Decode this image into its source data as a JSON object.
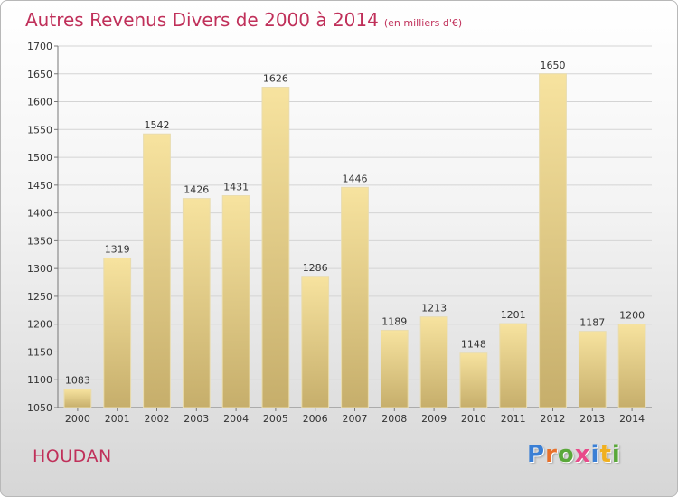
{
  "title": "Autres Revenus Divers de 2000 à 2014",
  "subtitle": "(en milliers d'€)",
  "city": "HOUDAN",
  "brand": {
    "text": "Proxiti",
    "letter_colors": [
      "#3a7fd5",
      "#e8702a",
      "#5aa83a",
      "#e84a8a",
      "#3a7fd5",
      "#f0b020",
      "#5aa83a"
    ]
  },
  "colors": {
    "accent": "#c0305a",
    "bar_light": "#f7e39f",
    "bar_dark": "#c6ae6b"
  },
  "chart_data": {
    "type": "bar",
    "categories": [
      "2000",
      "2001",
      "2002",
      "2003",
      "2004",
      "2005",
      "2006",
      "2007",
      "2008",
      "2009",
      "2010",
      "2011",
      "2012",
      "2013",
      "2014"
    ],
    "values": [
      1083,
      1319,
      1542,
      1426,
      1431,
      1626,
      1286,
      1446,
      1189,
      1213,
      1148,
      1201,
      1650,
      1187,
      1200
    ],
    "title": "Autres Revenus Divers de 2000 à 2014",
    "xlabel": "",
    "ylabel": "",
    "ylim": [
      1050,
      1700
    ],
    "yticks": [
      1050,
      1100,
      1150,
      1200,
      1250,
      1300,
      1350,
      1400,
      1450,
      1500,
      1550,
      1600,
      1650,
      1700
    ],
    "grid": true,
    "data_labels": true
  }
}
